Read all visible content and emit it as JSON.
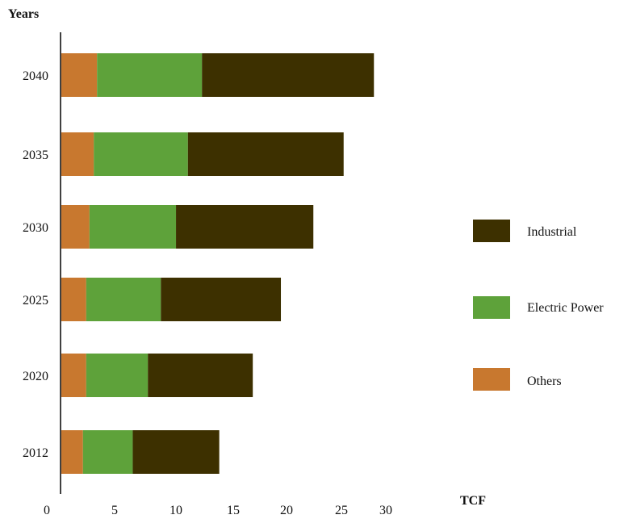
{
  "chart_data": {
    "type": "bar",
    "orientation": "horizontal",
    "stacked": true,
    "y_axis_label": "Years",
    "x_axis_label": "TCF",
    "categories": [
      "2040",
      "2035",
      "2030",
      "2025",
      "2020",
      "2012"
    ],
    "series": [
      {
        "name": "Others",
        "color": "#c8782f",
        "values": [
          3.3,
          3.0,
          2.6,
          2.3,
          2.3,
          2.0
        ]
      },
      {
        "name": "Electric Power",
        "color": "#5ea23a",
        "values": [
          9.7,
          8.7,
          8.0,
          6.9,
          5.7,
          4.6
        ]
      },
      {
        "name": "Industrial",
        "color": "#3d3000",
        "values": [
          15.9,
          14.4,
          12.7,
          11.1,
          9.7,
          8.0
        ]
      }
    ],
    "x_ticks": [
      "0",
      "5",
      "10",
      "15",
      "20",
      "25",
      "30"
    ],
    "legend": {
      "position": "right",
      "order": [
        "Industrial",
        "Electric Power",
        "Others"
      ]
    },
    "grid": false
  }
}
